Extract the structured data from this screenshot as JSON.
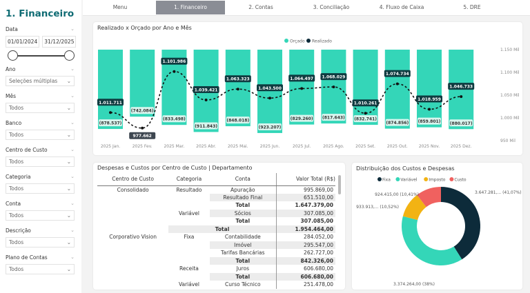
{
  "sidebar": {
    "title": "1. Financeiro",
    "date": {
      "label": "Data",
      "start": "01/01/2024",
      "end": "31/12/2025"
    },
    "filters": [
      {
        "label": "Ano",
        "value": "Seleções múltiplas"
      },
      {
        "label": "Mês",
        "value": "Todos"
      },
      {
        "label": "Banco",
        "value": "Todos"
      },
      {
        "label": "Centro de Custo",
        "value": "Todos"
      },
      {
        "label": "Categoria",
        "value": "Todos"
      },
      {
        "label": "Conta",
        "value": "Todos"
      },
      {
        "label": "Descrição",
        "value": "Todos"
      },
      {
        "label": "Plano de Contas",
        "value": "Todos"
      }
    ]
  },
  "nav": {
    "tabs": [
      "Menu",
      "1. Financeiro",
      "2. Contas",
      "3. Conciliação",
      "4. Fluxo de Caixa",
      "5. DRE"
    ],
    "active": 1
  },
  "chart_data": [
    {
      "type": "bar+line",
      "title": "Realizado x Orçado por Ano e Mês",
      "legend": [
        "Orçado",
        "Realizado"
      ],
      "legend_position": "top-center",
      "colors": {
        "Orçado": "#34d6b8",
        "Realizado": "#0d2b3a"
      },
      "categories": [
        "2025 Jan.",
        "2025 Fev.",
        "2025 Mar.",
        "2025 Abr.",
        "2025 Mai.",
        "2025 Jun.",
        "2025 Jul.",
        "2025 Ago.",
        "2025 Set.",
        "2025 Out.",
        "2025 Nov.",
        "2025 Dez."
      ],
      "series": [
        {
          "name": "Orçado",
          "values": [
            -878537,
            -742084,
            -833498,
            -911843,
            -848018,
            -923207,
            -829260,
            -817643,
            -832741,
            -874856,
            -859801,
            -880017
          ],
          "labels": [
            "(878.537)",
            "(742.084)",
            "(833.498)",
            "(911.843)",
            "(848.018)",
            "(923.207)",
            "(829.260)",
            "(817.643)",
            "(832.741)",
            "(874.856)",
            "(859.801)",
            "(880.017)"
          ]
        },
        {
          "name": "Realizado",
          "values": [
            1011711,
            977662,
            1101986,
            1039421,
            1063323,
            1043500,
            1064497,
            1068029,
            1010261,
            1074734,
            1018959,
            1046733
          ],
          "labels": [
            "1.011.711",
            "977.662",
            "1.101.986",
            "1.039.421",
            "1.063.323",
            "1.043.500",
            "1.064.497",
            "1.068.029",
            "1.010.261",
            "1.074.734",
            "1.018.959",
            "1.046.733"
          ]
        }
      ],
      "y_ticks": [
        "1.150 Mil",
        "1.100 Mil",
        "1.050 Mil",
        "1.000 Mil",
        "950 Mil"
      ],
      "ylim": [
        950000,
        1150000
      ]
    },
    {
      "type": "pie",
      "title": "Distribuição dos Custos e Despesas",
      "legend_position": "top",
      "slices": [
        {
          "name": "Fixa",
          "value": 3647281,
          "pct": 41.07,
          "label": "3.647.281,... (41,07%)",
          "color": "#0d2b3a"
        },
        {
          "name": "Variável",
          "value": 3374264,
          "pct": 38,
          "label": "3.374.264,00 (38%)",
          "color": "#34d6b8"
        },
        {
          "name": "Imposto",
          "value": 933913,
          "pct": 10.52,
          "label": "933.913,... (10,52%)",
          "color": "#f2b313"
        },
        {
          "name": "Custo",
          "value": 924415,
          "pct": 10.41,
          "label": "924.415,00 (10,41%)",
          "color": "#f0615f"
        }
      ]
    }
  ],
  "table": {
    "title": "Despesas e Custos por Centro de Custo | Departamento",
    "headers": [
      "Centro de Custo",
      "Categoria",
      "Conta",
      "Valor Total (R$)"
    ],
    "rows": [
      [
        "Consolidado",
        "Resultado",
        "Apuração",
        "995.869,00"
      ],
      [
        "",
        "",
        "Resultado Final",
        "651.510,00"
      ],
      [
        "",
        "",
        "Total",
        "1.647.379,00"
      ],
      [
        "",
        "Variável",
        "Sócios",
        "307.085,00"
      ],
      [
        "",
        "",
        "Total",
        "307.085,00"
      ],
      [
        "",
        "",
        "Total",
        "1.954.464,00"
      ],
      [
        "Corporativo Vision",
        "Fixa",
        "Contabilidade",
        "284.052,00"
      ],
      [
        "",
        "",
        "Imóvel",
        "295.547,00"
      ],
      [
        "",
        "",
        "Tarifas Bancárias",
        "262.727,00"
      ],
      [
        "",
        "",
        "Total",
        "842.326,00"
      ],
      [
        "",
        "Receita",
        "Juros",
        "606.680,00"
      ],
      [
        "",
        "",
        "Total",
        "606.680,00"
      ],
      [
        "",
        "Variável",
        "Curso Técnico",
        "251.478,00"
      ]
    ]
  }
}
